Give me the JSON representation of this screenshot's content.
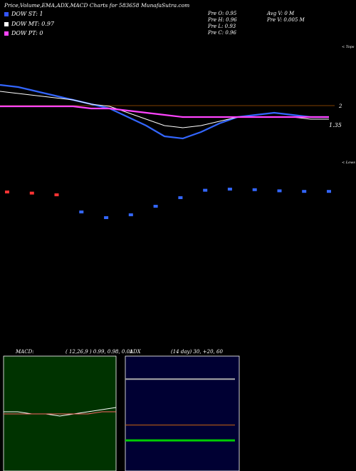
{
  "header": {
    "title": "Price,Volume,EMA,ADX,MACD Charts for 583658  MunafaSutra.com"
  },
  "legend": [
    {
      "label": "DOW ST: 1",
      "color": "#3355ff"
    },
    {
      "label": "DOW MT: 0.97",
      "color": "#ffffff"
    },
    {
      "label": "DOW PT: 0",
      "color": "#ff44ff"
    }
  ],
  "stats": {
    "prev_open": "Pre   O: 0.95",
    "prev_high": "Pre   H: 0.96",
    "prev_low": "Pre   L: 0.93",
    "prev_close": "Pre   C: 0.96",
    "avg_volume": "Avg V: 0  M",
    "prev_volume": "Pre   V: 0.005 M"
  },
  "price_panel": {
    "tops_label": "< Tops",
    "lows_label": "< Lows",
    "level_label": "2",
    "last_price_label": "1.35"
  },
  "macd_panel": {
    "label": "MACD:",
    "params": "( 12,26,9 ) 0.99, 0.98, 0.01"
  },
  "adx_panel": {
    "label": "ADX",
    "params": "(14  day) 30,  +20,  60"
  },
  "colors": {
    "background": "#000000",
    "macd_bg": "#003300",
    "adx_bg": "#000033",
    "ema_short": "#3366ff",
    "ema_long": "#ff44ff",
    "adx_line": "#aaaaaa",
    "di_plus": "#00cc00",
    "di_minus": "#cc6611"
  },
  "chart_data": [
    {
      "type": "line",
      "name": "price",
      "ylabel": "",
      "xlabel": "",
      "series": [
        {
          "values": [
            1.55,
            1.54,
            1.52,
            1.5,
            1.48,
            1.46,
            1.44,
            1.4,
            1.36,
            1.31,
            1.3,
            1.33,
            1.37,
            1.4,
            1.41,
            1.42,
            1.41,
            1.4,
            1.4
          ]
        },
        {
          "values": [
            1.52,
            1.51,
            1.5,
            1.49,
            1.48,
            1.46,
            1.45,
            1.42,
            1.39,
            1.36,
            1.35,
            1.36,
            1.38,
            1.4,
            1.4,
            1.4,
            1.4,
            1.39,
            1.39
          ]
        },
        {
          "values": [
            1.45,
            1.45,
            1.45,
            1.45,
            1.45,
            1.44,
            1.44,
            1.43,
            1.42,
            1.41,
            1.4,
            1.4,
            1.4,
            1.4,
            1.4,
            1.4,
            1.4,
            1.4,
            1.4
          ]
        }
      ]
    },
    {
      "type": "bar",
      "name": "volume",
      "values": [
        0.95,
        0.93,
        0.9,
        0.6,
        0.5,
        0.55,
        0.7,
        0.85,
        0.98,
        1.0,
        0.99,
        0.97,
        0.96,
        0.96
      ],
      "ylabel": ""
    },
    {
      "type": "line",
      "name": "macd",
      "series": [
        {
          "values": [
            0.99,
            0.99,
            0.98,
            0.98,
            0.97,
            0.98,
            0.99,
            1.0,
            1.01
          ]
        },
        {
          "values": [
            0.98,
            0.98,
            0.98,
            0.98,
            0.98,
            0.98,
            0.98,
            0.99,
            0.99
          ]
        }
      ]
    },
    {
      "type": "line",
      "name": "adx",
      "series": [
        {
          "values": [
            60,
            60
          ]
        },
        {
          "values": [
            30,
            30
          ]
        },
        {
          "values": [
            20,
            20
          ]
        }
      ]
    }
  ]
}
